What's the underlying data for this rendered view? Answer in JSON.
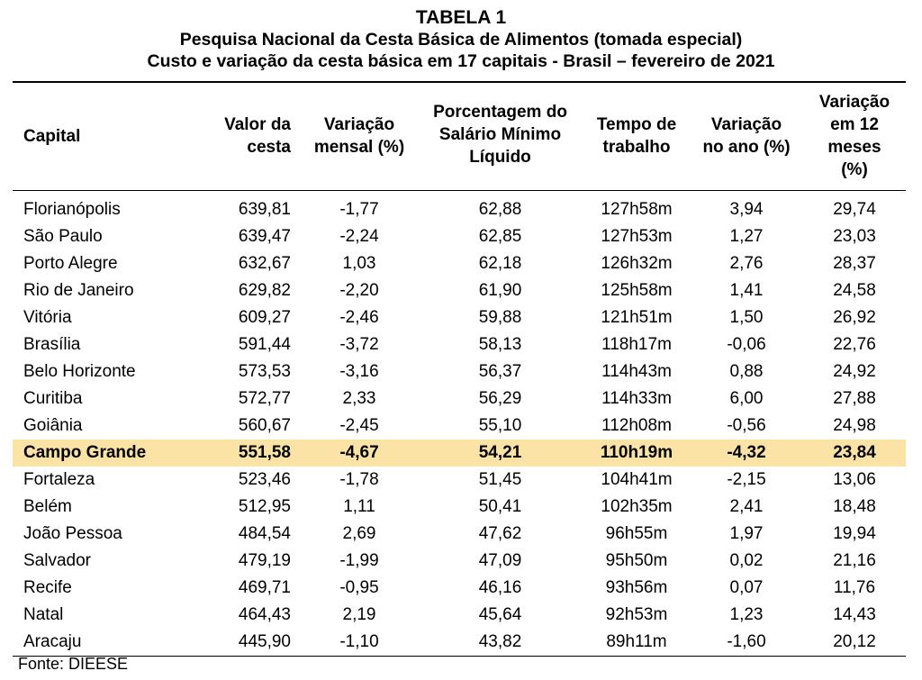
{
  "title": "TABELA 1",
  "subtitle": "Pesquisa Nacional da Cesta Básica de Alimentos (tomada especial)",
  "subtitle2": "Custo e variação da cesta básica em 17 capitais - Brasil – fevereiro de 2021",
  "headers": {
    "capital": "Capital",
    "valor": [
      "Valor da",
      "cesta"
    ],
    "variacao_mensal": [
      "Variação",
      "mensal (%)"
    ],
    "porcentagem": [
      "Porcentagem do",
      "Salário Mínimo",
      "Líquido"
    ],
    "tempo": [
      "Tempo de",
      "trabalho"
    ],
    "variacao_ano": [
      "Variação",
      "no ano (%)"
    ],
    "variacao_12": [
      "Variação",
      "em 12",
      "meses",
      "(%)"
    ]
  },
  "highlight_color": "#fbe3a5",
  "highlighted_row": "Campo Grande",
  "rows": [
    [
      "Florianópolis",
      "639,81",
      "-1,77",
      "62,88",
      "127h58m",
      "3,94",
      "29,74"
    ],
    [
      "São Paulo",
      "639,47",
      "-2,24",
      "62,85",
      "127h53m",
      "1,27",
      "23,03"
    ],
    [
      "Porto Alegre",
      "632,67",
      "1,03",
      "62,18",
      "126h32m",
      "2,76",
      "28,37"
    ],
    [
      "Rio de Janeiro",
      "629,82",
      "-2,20",
      "61,90",
      "125h58m",
      "1,41",
      "24,58"
    ],
    [
      "Vitória",
      "609,27",
      "-2,46",
      "59,88",
      "121h51m",
      "1,50",
      "26,92"
    ],
    [
      "Brasília",
      "591,44",
      "-3,72",
      "58,13",
      "118h17m",
      "-0,06",
      "22,76"
    ],
    [
      "Belo Horizonte",
      "573,53",
      "-3,16",
      "56,37",
      "114h43m",
      "0,88",
      "24,92"
    ],
    [
      "Curitiba",
      "572,77",
      "2,33",
      "56,29",
      "114h33m",
      "6,00",
      "27,88"
    ],
    [
      "Goiânia",
      "560,67",
      "-2,45",
      "55,10",
      "112h08m",
      "-0,56",
      "24,98"
    ],
    [
      "Campo Grande",
      "551,58",
      "-4,67",
      "54,21",
      "110h19m",
      "-4,32",
      "23,84"
    ],
    [
      "Fortaleza",
      "523,46",
      "-1,78",
      "51,45",
      "104h41m",
      "-2,15",
      "13,06"
    ],
    [
      "Belém",
      "512,95",
      "1,11",
      "50,41",
      "102h35m",
      "2,41",
      "18,48"
    ],
    [
      "João Pessoa",
      "484,54",
      "2,69",
      "47,62",
      "96h55m",
      "1,97",
      "19,94"
    ],
    [
      "Salvador",
      "479,19",
      "-1,99",
      "47,09",
      "95h50m",
      "0,02",
      "21,16"
    ],
    [
      "Recife",
      "469,71",
      "-0,95",
      "46,16",
      "93h56m",
      "0,07",
      "11,76"
    ],
    [
      "Natal",
      "464,43",
      "2,19",
      "45,64",
      "92h53m",
      "1,23",
      "14,43"
    ],
    [
      "Aracaju",
      "445,90",
      "-1,10",
      "43,82",
      "89h11m",
      "-1,60",
      "20,12"
    ]
  ],
  "source": "Fonte: DIEESE"
}
